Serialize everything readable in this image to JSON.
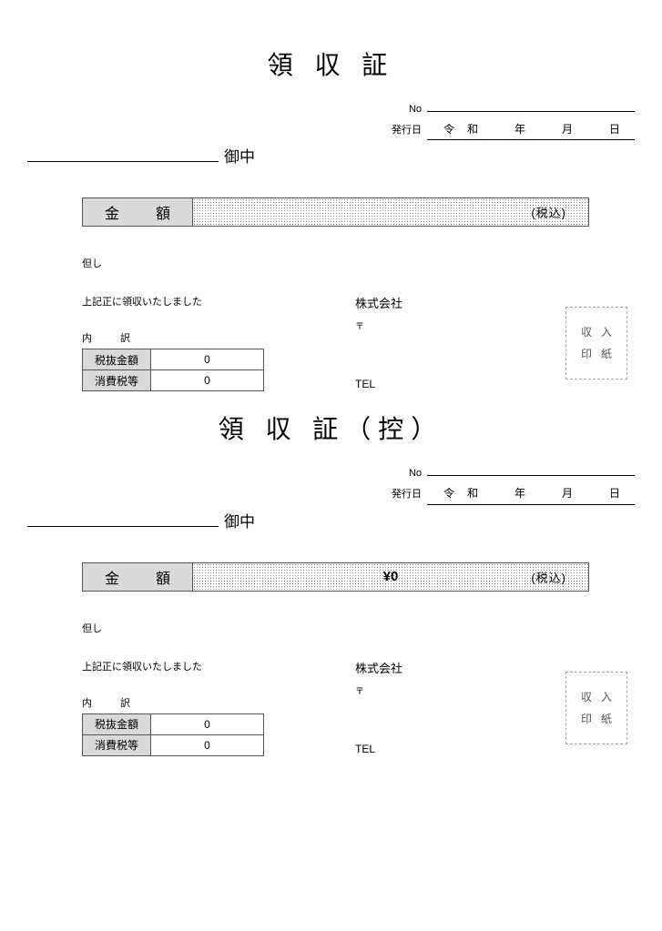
{
  "receipts": [
    {
      "title": "領 収 証",
      "no_label": "No",
      "no_value": "",
      "issue_label": "発行日",
      "issue_value": "令和　年　月　日",
      "addressee_value": "",
      "addressee_suffix": "御中",
      "amount_label": "金　額",
      "amount_value": "",
      "amount_tax": "(税込)",
      "note_label": "但し",
      "confirm_text": "上記正に領収いたしました",
      "breakdown_label": "内　訳",
      "bd_row1_label": "税抜金額",
      "bd_row1_value": "0",
      "bd_row2_label": "消費税等",
      "bd_row2_value": "0",
      "company": "株式会社",
      "postal_label": "〒",
      "tel_label": "TEL",
      "stamp_line1": "収入",
      "stamp_line2": "印紙"
    },
    {
      "title": "領 収 証（控）",
      "no_label": "No",
      "no_value": "",
      "issue_label": "発行日",
      "issue_value": "令和　年　月　日",
      "addressee_value": "",
      "addressee_suffix": "御中",
      "amount_label": "金　額",
      "amount_value": "¥0",
      "amount_tax": "(税込)",
      "note_label": "但し",
      "confirm_text": "上記正に領収いたしました",
      "breakdown_label": "内　訳",
      "bd_row1_label": "税抜金額",
      "bd_row1_value": "0",
      "bd_row2_label": "消費税等",
      "bd_row2_value": "0",
      "company": "株式会社",
      "postal_label": "〒",
      "tel_label": "TEL",
      "stamp_line1": "収入",
      "stamp_line2": "印紙"
    }
  ],
  "colors": {
    "header_fill": "#d9d9d9",
    "border": "#555555",
    "dot": "#888888",
    "stamp_border": "#aaaaaa",
    "stamp_text": "#555555"
  }
}
